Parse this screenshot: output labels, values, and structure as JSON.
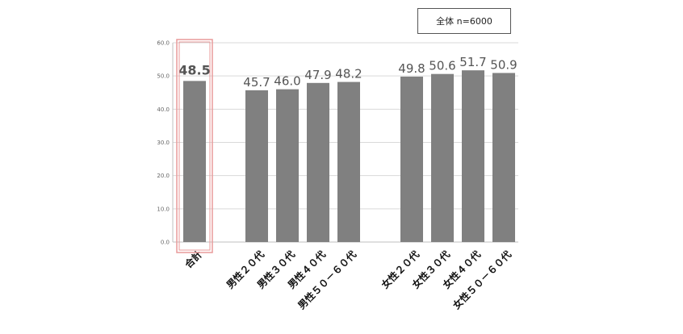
{
  "legend": {
    "text": "全体  n=6000"
  },
  "chart_data": {
    "type": "bar",
    "categories": [
      "合計",
      "男性２０代",
      "男性３０代",
      "男性４０代",
      "男性５０－６０代",
      "女性２０代",
      "女性３０代",
      "女性４０代",
      "女性５０－６０代"
    ],
    "values": [
      48.5,
      45.7,
      46.0,
      47.9,
      48.2,
      49.8,
      50.6,
      51.7,
      50.9
    ],
    "value_labels": [
      "48.5",
      "45.7",
      "46.0",
      "47.9",
      "48.2",
      "49.8",
      "50.6",
      "51.7",
      "50.9"
    ],
    "yticks": [
      "0.0",
      "10.0",
      "20.0",
      "30.0",
      "40.0",
      "50.0",
      "60.0"
    ],
    "ylim": [
      0,
      60
    ],
    "grid": true,
    "bar_color": "#808080",
    "highlight_category": "合計",
    "highlight_color": "#e99a9a"
  }
}
